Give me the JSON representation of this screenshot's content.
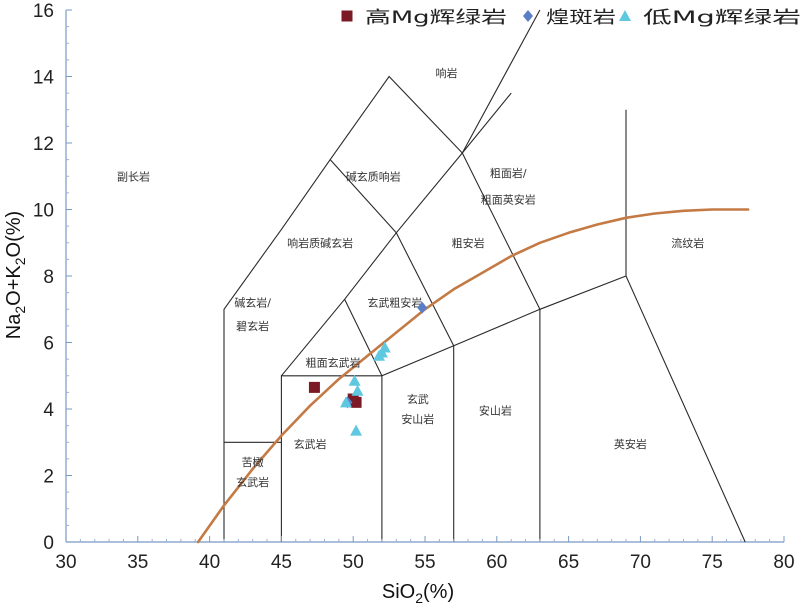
{
  "chart_data": {
    "type": "scatter",
    "title": "",
    "xlim": [
      30,
      80
    ],
    "ylim": [
      0,
      16
    ],
    "x_ticks": [
      30,
      35,
      40,
      45,
      50,
      55,
      60,
      65,
      70,
      75,
      80
    ],
    "y_ticks": [
      0,
      2,
      4,
      6,
      8,
      10,
      12,
      14,
      16
    ],
    "xlabel": {
      "base": "SiO",
      "sub": "2",
      "rest": "(%)"
    },
    "ylabel": {
      "p1": "Na",
      "s1": "2",
      "p2": "O+K",
      "s2": "2",
      "p3": "O(%)"
    },
    "grid": false,
    "legend_position": "top-right",
    "series": [
      {
        "name": "高Mg辉绿岩",
        "marker": "square",
        "color": "#7b1a26",
        "points": [
          [
            47.3,
            4.65
          ],
          [
            50.0,
            4.3
          ],
          [
            50.2,
            4.2
          ]
        ]
      },
      {
        "name": "煌斑岩",
        "marker": "diamond",
        "color": "#5b7fc7",
        "points": [
          [
            54.8,
            7.05
          ],
          [
            49.6,
            4.2
          ]
        ]
      },
      {
        "name": "低Mg辉绿岩",
        "marker": "triangle",
        "color": "#5ec8e0",
        "points": [
          [
            52.2,
            5.85
          ],
          [
            52.0,
            5.7
          ],
          [
            51.8,
            5.6
          ],
          [
            50.1,
            4.85
          ],
          [
            50.3,
            4.55
          ],
          [
            49.5,
            4.2
          ],
          [
            50.2,
            3.35
          ]
        ]
      }
    ],
    "field_boundaries": [
      [
        [
          41,
          0
        ],
        [
          41,
          7
        ],
        [
          45,
          9.4
        ],
        [
          48.4,
          11.5
        ],
        [
          52.5,
          14
        ],
        [
          57.6,
          11.7
        ],
        [
          63,
          16.2
        ]
      ],
      [
        [
          41,
          3
        ],
        [
          45,
          3
        ]
      ],
      [
        [
          45,
          0
        ],
        [
          45,
          5
        ],
        [
          52,
          5
        ],
        [
          52,
          0
        ]
      ],
      [
        [
          45,
          5
        ],
        [
          49.4,
          7.3
        ],
        [
          53,
          9.3
        ],
        [
          57.6,
          11.7
        ],
        [
          61,
          13.5
        ]
      ],
      [
        [
          49.4,
          7.3
        ],
        [
          52,
          5
        ],
        [
          57,
          5.9
        ],
        [
          63,
          7
        ],
        [
          69,
          8
        ]
      ],
      [
        [
          57,
          0
        ],
        [
          57,
          5.9
        ]
      ],
      [
        [
          63,
          0
        ],
        [
          63,
          7
        ],
        [
          57.6,
          11.7
        ]
      ],
      [
        [
          53,
          9.3
        ],
        [
          57,
          5.9
        ]
      ],
      [
        [
          48.4,
          11.5
        ],
        [
          53,
          9.3
        ]
      ],
      [
        [
          69,
          13
        ],
        [
          69,
          8
        ],
        [
          77.3,
          0
        ]
      ]
    ],
    "alkaline_curve": [
      [
        39.2,
        0
      ],
      [
        41,
        1.1
      ],
      [
        43,
        2.2
      ],
      [
        45,
        3.2
      ],
      [
        47,
        4.1
      ],
      [
        49,
        4.9
      ],
      [
        51,
        5.6
      ],
      [
        53,
        6.3
      ],
      [
        55,
        7
      ],
      [
        57,
        7.6
      ],
      [
        59,
        8.1
      ],
      [
        61,
        8.6
      ],
      [
        63,
        9
      ],
      [
        65,
        9.3
      ],
      [
        67,
        9.55
      ],
      [
        69,
        9.75
      ],
      [
        71,
        9.88
      ],
      [
        73,
        9.96
      ],
      [
        75,
        10
      ],
      [
        77.5,
        10
      ]
    ],
    "curve_color": "#c47a45",
    "field_labels": [
      {
        "text": "响岩",
        "x": 56.5,
        "y": 14.1
      },
      {
        "text": "副长岩",
        "x": 34.7,
        "y": 11.0
      },
      {
        "text": "碱玄质响岩",
        "x": 51.4,
        "y": 11.0
      },
      {
        "text": "粗面岩/",
        "x": 60.8,
        "y": 11.1
      },
      {
        "text": "粗面英安岩",
        "x": 60.8,
        "y": 10.3
      },
      {
        "text": "响岩质碱玄岩",
        "x": 47.7,
        "y": 9.0
      },
      {
        "text": "粗安岩",
        "x": 58.0,
        "y": 9.0
      },
      {
        "text": "流纹岩",
        "x": 73.3,
        "y": 9.0
      },
      {
        "text": "碱玄岩/",
        "x": 43.0,
        "y": 7.2
      },
      {
        "text": "碧玄岩",
        "x": 43.0,
        "y": 6.5
      },
      {
        "text": "玄武粗安岩",
        "x": 52.9,
        "y": 7.2
      },
      {
        "text": "粗面玄武岩",
        "x": 48.6,
        "y": 5.4
      },
      {
        "text": "玄武",
        "x": 54.5,
        "y": 4.3
      },
      {
        "text": "安山岩",
        "x": 54.5,
        "y": 3.7
      },
      {
        "text": "安山岩",
        "x": 59.9,
        "y": 3.95
      },
      {
        "text": "玄武岩",
        "x": 47.0,
        "y": 2.95
      },
      {
        "text": "英安岩",
        "x": 69.3,
        "y": 2.95
      },
      {
        "text": "苦橄",
        "x": 43.0,
        "y": 2.4
      },
      {
        "text": "玄武岩",
        "x": 43.0,
        "y": 1.8
      }
    ]
  }
}
